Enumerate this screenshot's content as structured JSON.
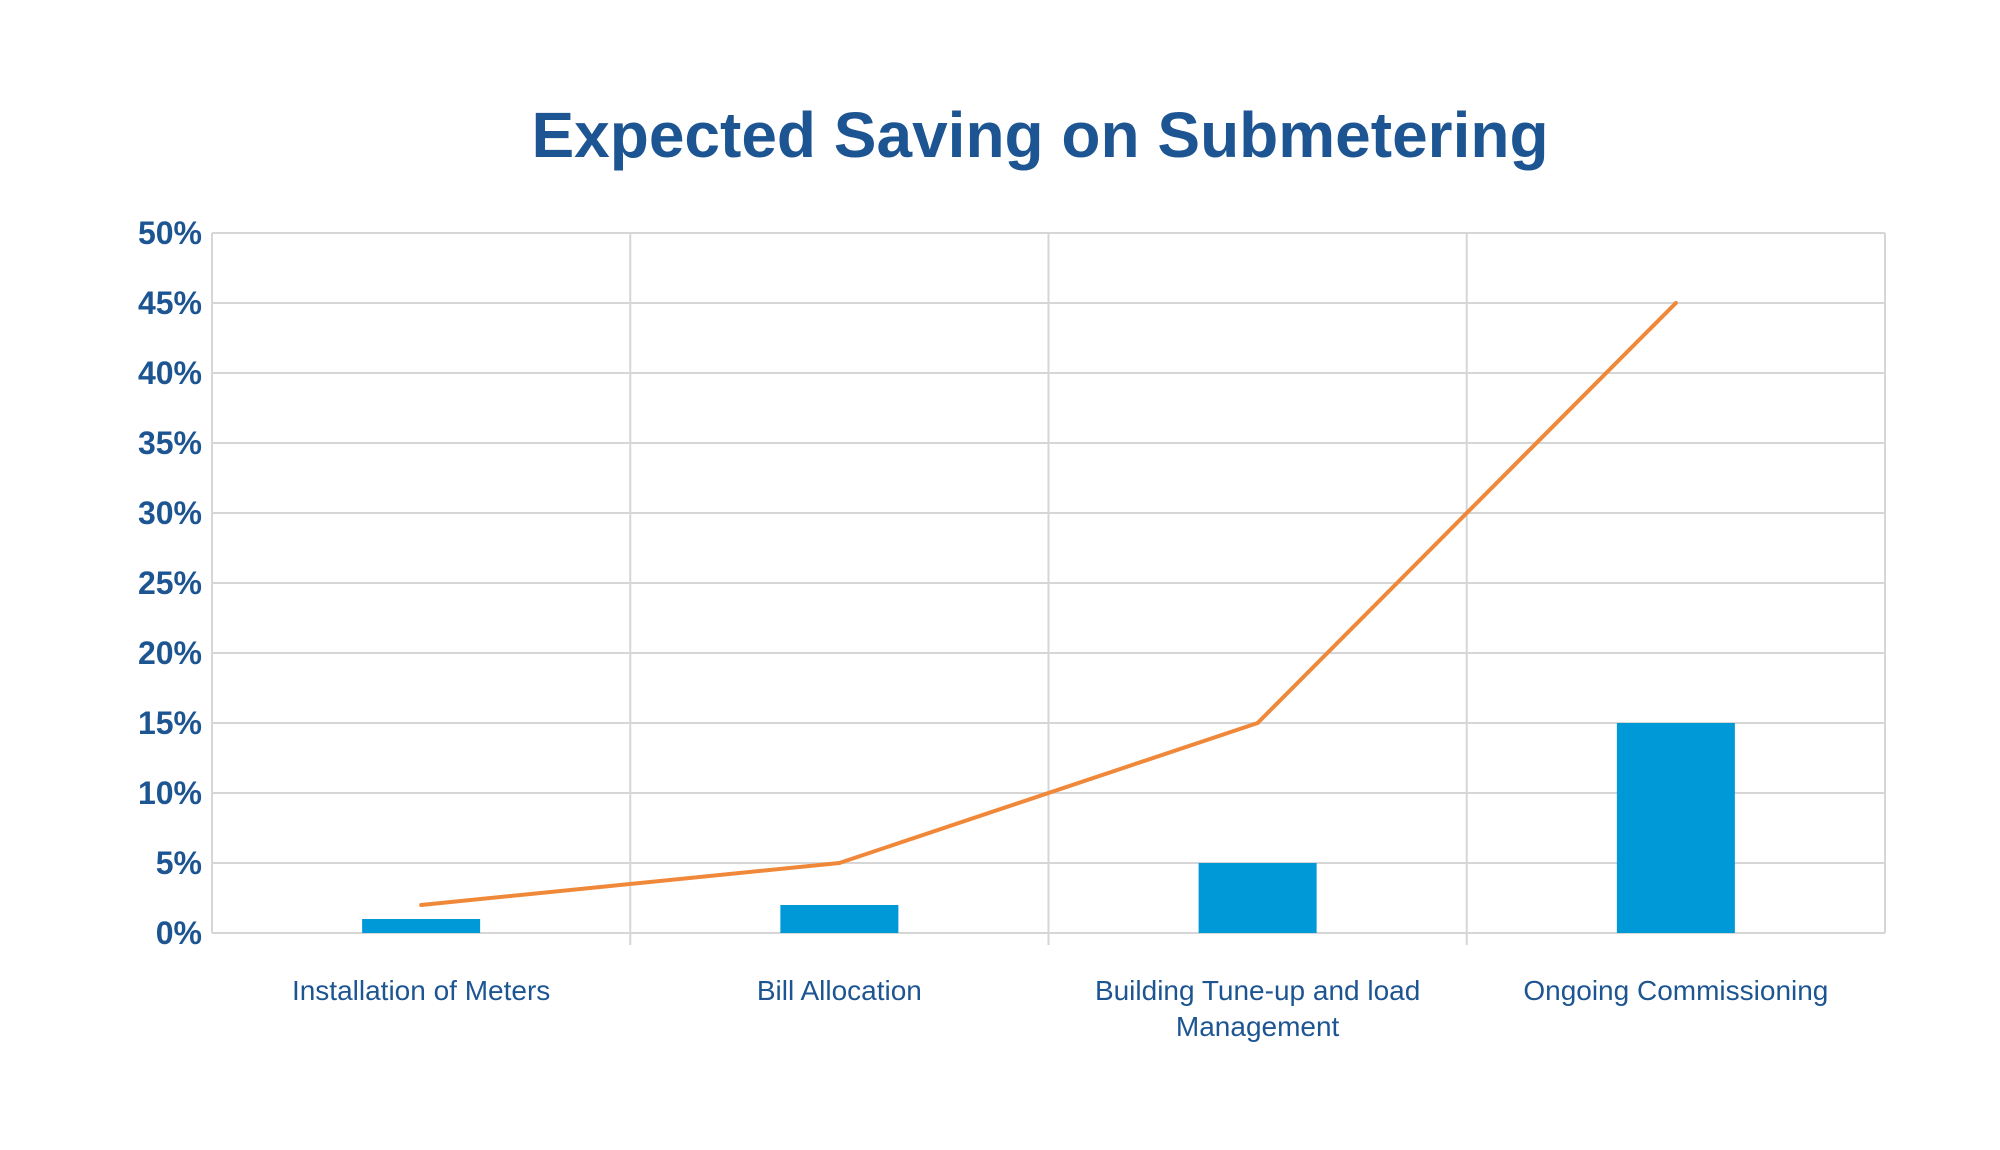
{
  "chart_data": {
    "type": "bar",
    "title": "Expected Saving on Submetering",
    "xlabel": "",
    "ylabel": "",
    "categories": [
      "Installation of Meters",
      "Bill Allocation",
      "Building Tune-up and load Management",
      "Ongoing Commissioning"
    ],
    "category_label_lines": [
      [
        "Installation of Meters"
      ],
      [
        "Bill Allocation"
      ],
      [
        "Building Tune-up and load",
        "Management"
      ],
      [
        "Ongoing Commissioning"
      ]
    ],
    "series": [
      {
        "type": "bar",
        "values": [
          1,
          2,
          5,
          15
        ],
        "color": "#0099d8"
      },
      {
        "type": "line",
        "values": [
          2,
          5,
          15,
          45
        ],
        "color": "#f0883a"
      }
    ],
    "ylim": [
      0,
      50
    ],
    "yticks": [
      0,
      5,
      10,
      15,
      20,
      25,
      30,
      35,
      40,
      45,
      50
    ],
    "ytick_labels": [
      "0%",
      "5%",
      "10%",
      "15%",
      "20%",
      "25%",
      "30%",
      "35%",
      "40%",
      "45%",
      "50%"
    ],
    "grid": true,
    "legend": "none"
  },
  "colors": {
    "title": "#1d5592",
    "tick_text": "#1d5592",
    "grid": "#d6d6d6",
    "bar": "#0099d8",
    "line": "#f0883a"
  }
}
